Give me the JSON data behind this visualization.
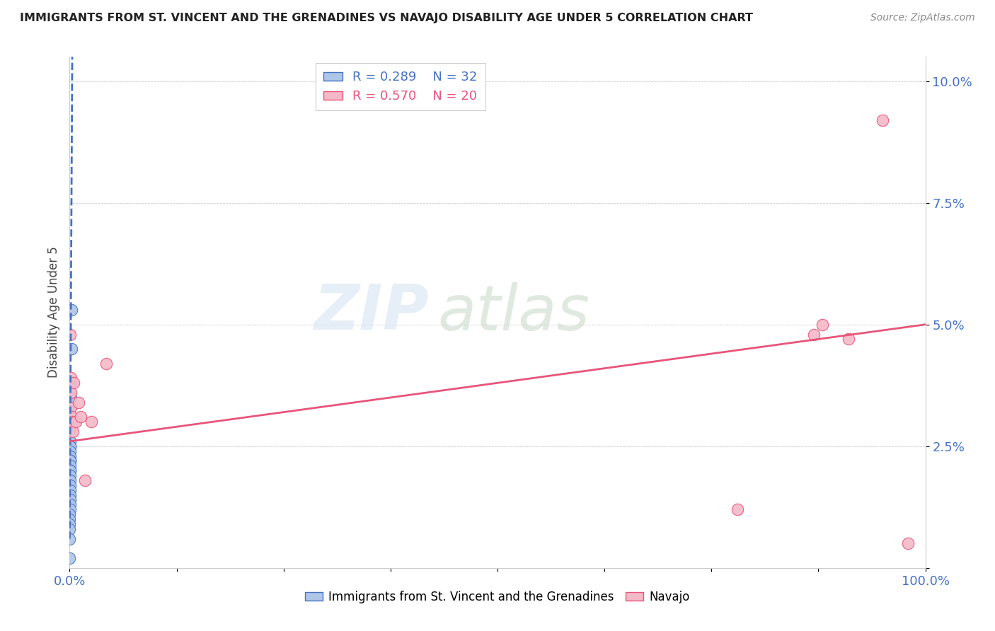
{
  "title": "IMMIGRANTS FROM ST. VINCENT AND THE GRENADINES VS NAVAJO DISABILITY AGE UNDER 5 CORRELATION CHART",
  "source": "Source: ZipAtlas.com",
  "ylabel": "Disability Age Under 5",
  "xlim": [
    0,
    1.0
  ],
  "ylim": [
    0,
    0.105
  ],
  "xticks": [
    0.0,
    0.125,
    0.25,
    0.375,
    0.5,
    0.625,
    0.75,
    0.875,
    1.0
  ],
  "xtick_labels": [
    "0.0%",
    "",
    "",
    "",
    "",
    "",
    "",
    "",
    "100.0%"
  ],
  "yticks": [
    0.0,
    0.025,
    0.05,
    0.075,
    0.1
  ],
  "ytick_labels": [
    "",
    "2.5%",
    "5.0%",
    "7.5%",
    "10.0%"
  ],
  "legend_blue_r": "R = 0.289",
  "legend_blue_n": "N = 32",
  "legend_pink_r": "R = 0.570",
  "legend_pink_n": "N = 20",
  "legend_blue_label": "Immigrants from St. Vincent and the Grenadines",
  "legend_pink_label": "Navajo",
  "watermark_zip": "ZIP",
  "watermark_atlas": "atlas",
  "blue_color": "#aec6e8",
  "blue_line_color": "#4472c4",
  "pink_color": "#f5b8c8",
  "pink_line_color": "#e8547a",
  "blue_scatter_x": [
    0.0018,
    0.0022,
    0.0015,
    0.001,
    0.0008,
    0.0005,
    0.0005,
    0.0004,
    0.0004,
    0.0003,
    0.0003,
    0.0003,
    0.0003,
    0.0002,
    0.0002,
    0.0002,
    0.0002,
    0.0001,
    0.0001,
    0.0001,
    0.0001,
    0.0001,
    0.0001,
    0.0001,
    0.0001,
    0.0001,
    5e-05,
    5e-05,
    5e-05,
    5e-05,
    5e-05,
    5e-05
  ],
  "blue_scatter_y": [
    0.053,
    0.045,
    0.038,
    0.035,
    0.033,
    0.03,
    0.028,
    0.026,
    0.025,
    0.025,
    0.024,
    0.023,
    0.022,
    0.022,
    0.022,
    0.021,
    0.02,
    0.02,
    0.019,
    0.018,
    0.017,
    0.016,
    0.015,
    0.014,
    0.013,
    0.012,
    0.011,
    0.01,
    0.009,
    0.008,
    0.006,
    0.002
  ],
  "pink_scatter_x": [
    0.0008,
    0.001,
    0.0012,
    0.0015,
    0.002,
    0.003,
    0.004,
    0.005,
    0.007,
    0.01,
    0.013,
    0.018,
    0.025,
    0.043,
    0.78,
    0.87,
    0.88,
    0.91,
    0.95,
    0.98
  ],
  "pink_scatter_y": [
    0.048,
    0.039,
    0.036,
    0.033,
    0.031,
    0.03,
    0.028,
    0.038,
    0.03,
    0.034,
    0.031,
    0.018,
    0.03,
    0.042,
    0.012,
    0.048,
    0.05,
    0.047,
    0.092,
    0.005
  ],
  "blue_trend_x": [
    5e-05,
    0.003
  ],
  "blue_trend_y": [
    0.006,
    0.105
  ],
  "pink_trend_x": [
    0.0,
    1.0
  ],
  "pink_trend_y": [
    0.026,
    0.05
  ]
}
